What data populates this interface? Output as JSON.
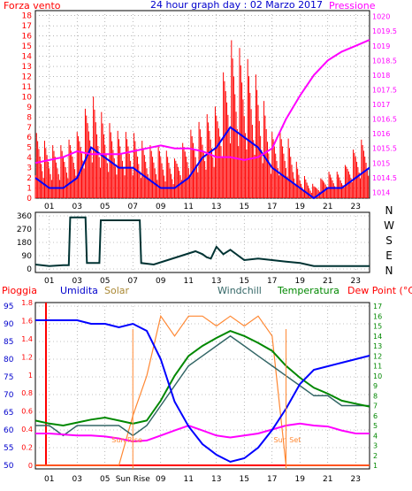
{
  "title": "24 hour graph day : 02 Marzo 2017",
  "colors": {
    "wind": "#ff0000",
    "gust_line": "#0000ff",
    "pressure": "#ff00ff",
    "direction": "#003333",
    "rain": "#ff0000",
    "humidity": "#0000ff",
    "solar": "#ff8833",
    "windchill": "#336666",
    "temperature": "#008800",
    "dewpoint": "#ff00ff",
    "title_blue": "#0000cc",
    "grid": "#888888"
  },
  "panel1": {
    "left_label": "Forza vento",
    "right_label": "Pressione",
    "x_ticks": [
      "01",
      "03",
      "05",
      "07",
      "09",
      "11",
      "13",
      "15",
      "17",
      "19",
      "21",
      "23"
    ],
    "y_left_ticks": [
      "0",
      "1",
      "2",
      "3",
      "4",
      "5",
      "6",
      "7",
      "8",
      "9",
      "10",
      "11",
      "12",
      "13",
      "14",
      "15",
      "16",
      "17",
      "18"
    ],
    "y_right_ticks": [
      "1014",
      "1014.5",
      "1015",
      "1015.5",
      "1016",
      "1016.5",
      "1017",
      "1017.5",
      "1018",
      "1018.5",
      "1019",
      "1019.5",
      "1020"
    ]
  },
  "panel2": {
    "y_ticks": [
      "0",
      "90",
      "180",
      "270",
      "360"
    ],
    "dir_labels": [
      "N",
      "W",
      "S",
      "E",
      "N"
    ]
  },
  "panel3": {
    "legend": {
      "rain": "Pioggia",
      "humidity": "Umidita",
      "solar": "Solar",
      "windchill": "Windchill",
      "temperature": "Temperatura",
      "dewpoint": "Dew Point (°C)"
    },
    "x_ticks": [
      "01",
      "03",
      "05",
      "Sun Rise",
      "09",
      "11",
      "13",
      "15",
      "17",
      "19",
      "21",
      "23"
    ],
    "sun_rise_label": "Sun Rise",
    "sun_set_label": "Sun Set",
    "y_hum_ticks": [
      "50",
      "55",
      "60",
      "65",
      "70",
      "75",
      "80",
      "85",
      "90",
      "95"
    ],
    "y_rain_ticks": [
      "0",
      "0.2",
      "0.4",
      "0.6",
      "0.8",
      "1",
      "1.2",
      "1.4",
      "1.6",
      "1.8"
    ],
    "y_temp_ticks": [
      "1",
      "2",
      "3",
      "4",
      "5",
      "6",
      "7",
      "8",
      "9",
      "10",
      "11",
      "12",
      "13",
      "14",
      "15",
      "16",
      "17"
    ]
  },
  "chart_data": [
    {
      "type": "line",
      "title": "24 hour graph day : 02 Marzo 2017",
      "xlabel": "",
      "ylabel": "Forza vento",
      "x_hours": [
        0,
        1,
        2,
        3,
        4,
        5,
        6,
        7,
        8,
        9,
        10,
        11,
        12,
        13,
        14,
        15,
        16,
        17,
        18,
        19,
        20,
        21,
        22,
        23,
        24
      ],
      "ylim": [
        0,
        18.5
      ],
      "series": [
        {
          "name": "Forza vento",
          "values": [
            5,
            4,
            4,
            5,
            8,
            6,
            5,
            5,
            4,
            4,
            3,
            5,
            6,
            7,
            12,
            11,
            9,
            5,
            5,
            2,
            1,
            2,
            2,
            4,
            5
          ]
        },
        {
          "values": [
            2,
            1,
            1,
            2,
            5,
            4,
            3,
            3,
            2,
            1,
            1,
            2,
            4,
            5,
            7,
            6,
            5,
            3,
            2,
            1,
            0,
            1,
            1,
            2,
            3
          ]
        },
        {
          "name": "Pressione",
          "axis": "right",
          "ylim": [
            1013.8,
            1020.2
          ],
          "values": [
            1015.0,
            1015.1,
            1015.2,
            1015.4,
            1015.3,
            1015.3,
            1015.3,
            1015.4,
            1015.5,
            1015.6,
            1015.5,
            1015.5,
            1015.4,
            1015.2,
            1015.2,
            1015.1,
            1015.2,
            1015.5,
            1016.5,
            1017.3,
            1018.0,
            1018.5,
            1018.8,
            1019.0,
            1019.2
          ]
        }
      ]
    },
    {
      "type": "line",
      "title": "",
      "xlabel": "",
      "ylabel": "",
      "x_hours": [
        0,
        1,
        2,
        2.4,
        2.5,
        3.6,
        3.7,
        4.6,
        4.7,
        5.0,
        7.5,
        7.6,
        8.5,
        9.5,
        10.5,
        11.5,
        12.0,
        12.3,
        12.6,
        13.0,
        13.5,
        14.0,
        15.0,
        16.0,
        17.0,
        18.0,
        19.0,
        20.0,
        21.0,
        22.0,
        23.0,
        24.0
      ],
      "ylim": [
        0,
        360
      ],
      "series": [
        {
          "name": "Direzione",
          "values": [
            30,
            20,
            25,
            25,
            350,
            350,
            40,
            40,
            330,
            330,
            330,
            40,
            30,
            60,
            90,
            120,
            100,
            80,
            70,
            150,
            100,
            130,
            60,
            70,
            60,
            50,
            40,
            20,
            20,
            20,
            20,
            20
          ]
        }
      ]
    },
    {
      "type": "line",
      "title": "",
      "xlabel": "",
      "ylabel": "",
      "x_hours": [
        0,
        1,
        2,
        3,
        4,
        5,
        6,
        7,
        8,
        9,
        10,
        11,
        12,
        13,
        14,
        15,
        16,
        17,
        18,
        19,
        20,
        21,
        22,
        23,
        24
      ],
      "series": [
        {
          "name": "Pioggia",
          "axis": "rain",
          "ylim": [
            0,
            1.8
          ],
          "values": [
            0,
            0,
            0,
            0,
            0,
            0,
            0,
            0,
            0,
            0,
            0,
            0,
            0,
            0,
            0,
            0,
            0,
            0,
            0,
            0,
            0,
            0,
            0,
            0,
            0
          ]
        },
        {
          "name": "Umidita",
          "axis": "left",
          "ylim": [
            49,
            96
          ],
          "values": [
            91,
            91,
            91,
            91,
            90,
            90,
            89,
            90,
            88,
            80,
            68,
            61,
            56,
            53,
            51,
            52,
            55,
            60,
            66,
            73,
            77,
            78,
            79,
            80,
            81
          ]
        },
        {
          "name": "Solar",
          "axis": "right",
          "ylim": [
            1,
            17
          ],
          "values": [
            1,
            1,
            1,
            1,
            1,
            1,
            1,
            6,
            10,
            16,
            14,
            16,
            16,
            15,
            16,
            15,
            16,
            14,
            1,
            1,
            1,
            1,
            1,
            1,
            1
          ]
        },
        {
          "name": "Windchill",
          "axis": "right",
          "ylim": [
            1,
            17
          ],
          "values": [
            5,
            5,
            4,
            5,
            5,
            5,
            5,
            4,
            5,
            7,
            9,
            11,
            12,
            13,
            14,
            13,
            12,
            11,
            10,
            9,
            8,
            8,
            7,
            7,
            7
          ]
        },
        {
          "name": "Temperatura",
          "axis": "right",
          "ylim": [
            1,
            17
          ],
          "values": [
            5.5,
            5.2,
            5.0,
            5.3,
            5.6,
            5.8,
            5.5,
            5.2,
            5.5,
            7.5,
            10,
            12,
            13,
            13.8,
            14.5,
            14,
            13.3,
            12.5,
            11,
            9.8,
            8.8,
            8.2,
            7.5,
            7.2,
            6.9
          ]
        },
        {
          "name": "Dew Point",
          "axis": "right",
          "ylim": [
            1,
            17
          ],
          "values": [
            4.2,
            4.2,
            4.1,
            4.0,
            4.0,
            3.9,
            3.7,
            3.4,
            3.5,
            4.0,
            4.5,
            5.0,
            4.5,
            4.0,
            3.8,
            4.0,
            4.2,
            4.6,
            5.0,
            5.2,
            5.0,
            4.9,
            4.5,
            4.2,
            4.2
          ]
        }
      ]
    }
  ]
}
